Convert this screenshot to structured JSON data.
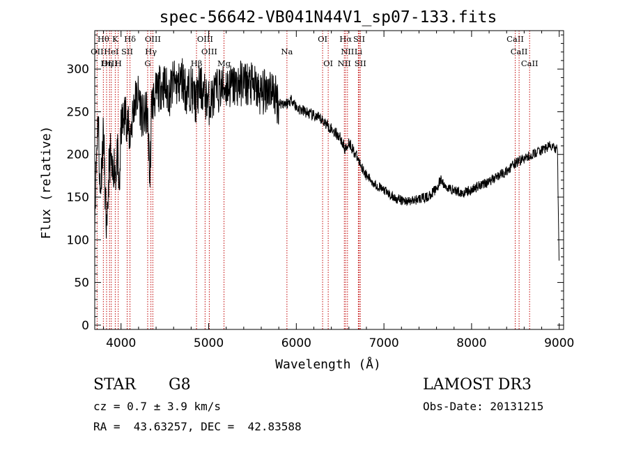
{
  "chart_data": {
    "type": "line",
    "title": "spec-56642-VB041N44V1_sp07-133.fits",
    "xlabel": "Wavelength (Å)",
    "ylabel": "Flux (relative)",
    "xlim": [
      3700,
      9050
    ],
    "ylim": [
      -5,
      345
    ],
    "xticks": [
      4000,
      5000,
      6000,
      7000,
      8000,
      9000
    ],
    "yticks": [
      0,
      50,
      100,
      150,
      200,
      250,
      300
    ],
    "series": [
      {
        "name": "spectrum",
        "x": [
          3700,
          3720,
          3740,
          3760,
          3780,
          3800,
          3820,
          3840,
          3860,
          3880,
          3900,
          3920,
          3940,
          3960,
          3980,
          4000,
          4050,
          4100,
          4150,
          4200,
          4250,
          4300,
          4330,
          4350,
          4400,
          4450,
          4500,
          4550,
          4600,
          4650,
          4700,
          4750,
          4800,
          4850,
          4900,
          4950,
          5000,
          5100,
          5200,
          5300,
          5400,
          5500,
          5600,
          5700,
          5800,
          5900,
          5950,
          6000,
          6100,
          6200,
          6300,
          6400,
          6500,
          6560,
          6600,
          6700,
          6800,
          6900,
          7000,
          7100,
          7200,
          7300,
          7400,
          7500,
          7600,
          7650,
          7700,
          7800,
          7900,
          8000,
          8100,
          8200,
          8300,
          8400,
          8500,
          8600,
          8700,
          8800,
          8900,
          8980,
          9000
        ],
        "y": [
          130,
          200,
          250,
          150,
          190,
          230,
          150,
          100,
          180,
          200,
          170,
          190,
          180,
          200,
          150,
          230,
          250,
          220,
          260,
          270,
          240,
          250,
          170,
          260,
          270,
          280,
          280,
          270,
          285,
          280,
          290,
          270,
          280,
          260,
          280,
          270,
          260,
          275,
          280,
          280,
          285,
          280,
          270,
          280,
          260,
          260,
          265,
          255,
          250,
          245,
          240,
          230,
          220,
          205,
          215,
          195,
          175,
          165,
          158,
          150,
          146,
          145,
          148,
          150,
          160,
          170,
          162,
          158,
          155,
          158,
          165,
          168,
          175,
          180,
          190,
          195,
          200,
          205,
          210,
          205,
          60
        ]
      }
    ],
    "line_markers": [
      {
        "label": "Hθ",
        "wave": 3798,
        "row": 1
      },
      {
        "label": "K",
        "wave": 3934,
        "row": 1
      },
      {
        "label": "Hδ",
        "wave": 4102,
        "row": 1
      },
      {
        "label": "OIII",
        "wave": 4363,
        "row": 1
      },
      {
        "label": "OIII",
        "wave": 4959,
        "row": 1
      },
      {
        "label": "OI",
        "wave": 6300,
        "row": 1
      },
      {
        "label": "Hα",
        "wave": 6563,
        "row": 1
      },
      {
        "label": "SII",
        "wave": 6717,
        "row": 1
      },
      {
        "label": "CaII",
        "wave": 8498,
        "row": 1
      },
      {
        "label": "OII",
        "wave": 3727,
        "row": 2
      },
      {
        "label": "HeI",
        "wave": 3889,
        "row": 2
      },
      {
        "label": "SII",
        "wave": 4070,
        "row": 2
      },
      {
        "label": "Hγ",
        "wave": 4341,
        "row": 2
      },
      {
        "label": "OIII",
        "wave": 5007,
        "row": 2
      },
      {
        "label": "Na",
        "wave": 5893,
        "row": 2
      },
      {
        "label": "NII",
        "wave": 6584,
        "row": 2
      },
      {
        "label": "Li",
        "wave": 6708,
        "row": 2
      },
      {
        "label": "CaII",
        "wave": 8542,
        "row": 2
      },
      {
        "label": "OIII",
        "wave": 3869,
        "row": 3
      },
      {
        "label": "Hη",
        "wave": 3835,
        "row": 3
      },
      {
        "label": "H",
        "wave": 3968,
        "row": 3
      },
      {
        "label": "G",
        "wave": 4304,
        "row": 3
      },
      {
        "label": "Hβ",
        "wave": 4861,
        "row": 3
      },
      {
        "label": "Mg",
        "wave": 5175,
        "row": 3
      },
      {
        "label": "OI",
        "wave": 6364,
        "row": 3
      },
      {
        "label": "NII",
        "wave": 6548,
        "row": 3
      },
      {
        "label": "SII",
        "wave": 6731,
        "row": 3
      },
      {
        "label": "CaII",
        "wave": 8662,
        "row": 3
      }
    ],
    "colors": {
      "spectrum": "#000000",
      "markers": "#c00000",
      "axes": "#000000"
    }
  },
  "info": {
    "object_type": "STAR",
    "subclass": "G8",
    "survey": "LAMOST DR3",
    "cz": "cz = 0.7 ± 3.9 km/s",
    "obs_date": "Obs-Date: 20131215",
    "coords": "RA =  43.63257, DEC =  42.83588"
  }
}
